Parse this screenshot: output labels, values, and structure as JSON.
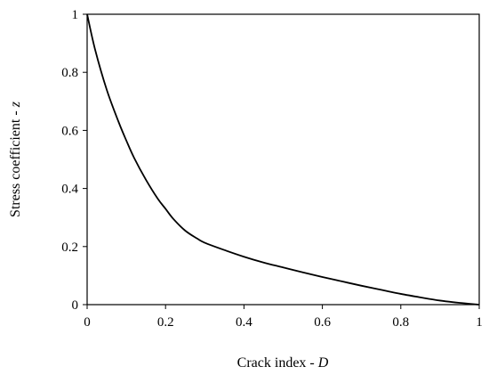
{
  "chart_data": {
    "type": "line",
    "title": "",
    "xlabel": {
      "text": "Crack index - ",
      "var": "D"
    },
    "ylabel": {
      "text": "Stress coefficient - ",
      "var": "z"
    },
    "xlim": [
      0,
      1
    ],
    "ylim": [
      0,
      1
    ],
    "xticks": [
      0,
      0.2,
      0.4,
      0.6,
      0.8,
      1
    ],
    "yticks": [
      0,
      0.2,
      0.4,
      0.6,
      0.8,
      1
    ],
    "xtick_labels": [
      "0",
      "0.2",
      "0.4",
      "0.6",
      "0.8",
      "1"
    ],
    "ytick_labels": [
      "0",
      "0.2",
      "0.4",
      "0.6",
      "0.8",
      "1"
    ],
    "grid": false,
    "legend": "none",
    "line_color": "#000000",
    "series": [
      {
        "x": [
          0,
          0.02,
          0.05,
          0.08,
          0.1,
          0.12,
          0.15,
          0.18,
          0.2,
          0.22,
          0.25,
          0.28,
          0.3,
          0.35,
          0.4,
          0.45,
          0.5,
          0.55,
          0.6,
          0.65,
          0.7,
          0.75,
          0.8,
          0.85,
          0.9,
          0.95,
          1
        ],
        "y": [
          1,
          0.88,
          0.74,
          0.63,
          0.565,
          0.505,
          0.43,
          0.365,
          0.33,
          0.295,
          0.255,
          0.228,
          0.213,
          0.188,
          0.165,
          0.145,
          0.128,
          0.111,
          0.095,
          0.08,
          0.065,
          0.051,
          0.037,
          0.025,
          0.014,
          0.006,
          0
        ]
      }
    ]
  }
}
